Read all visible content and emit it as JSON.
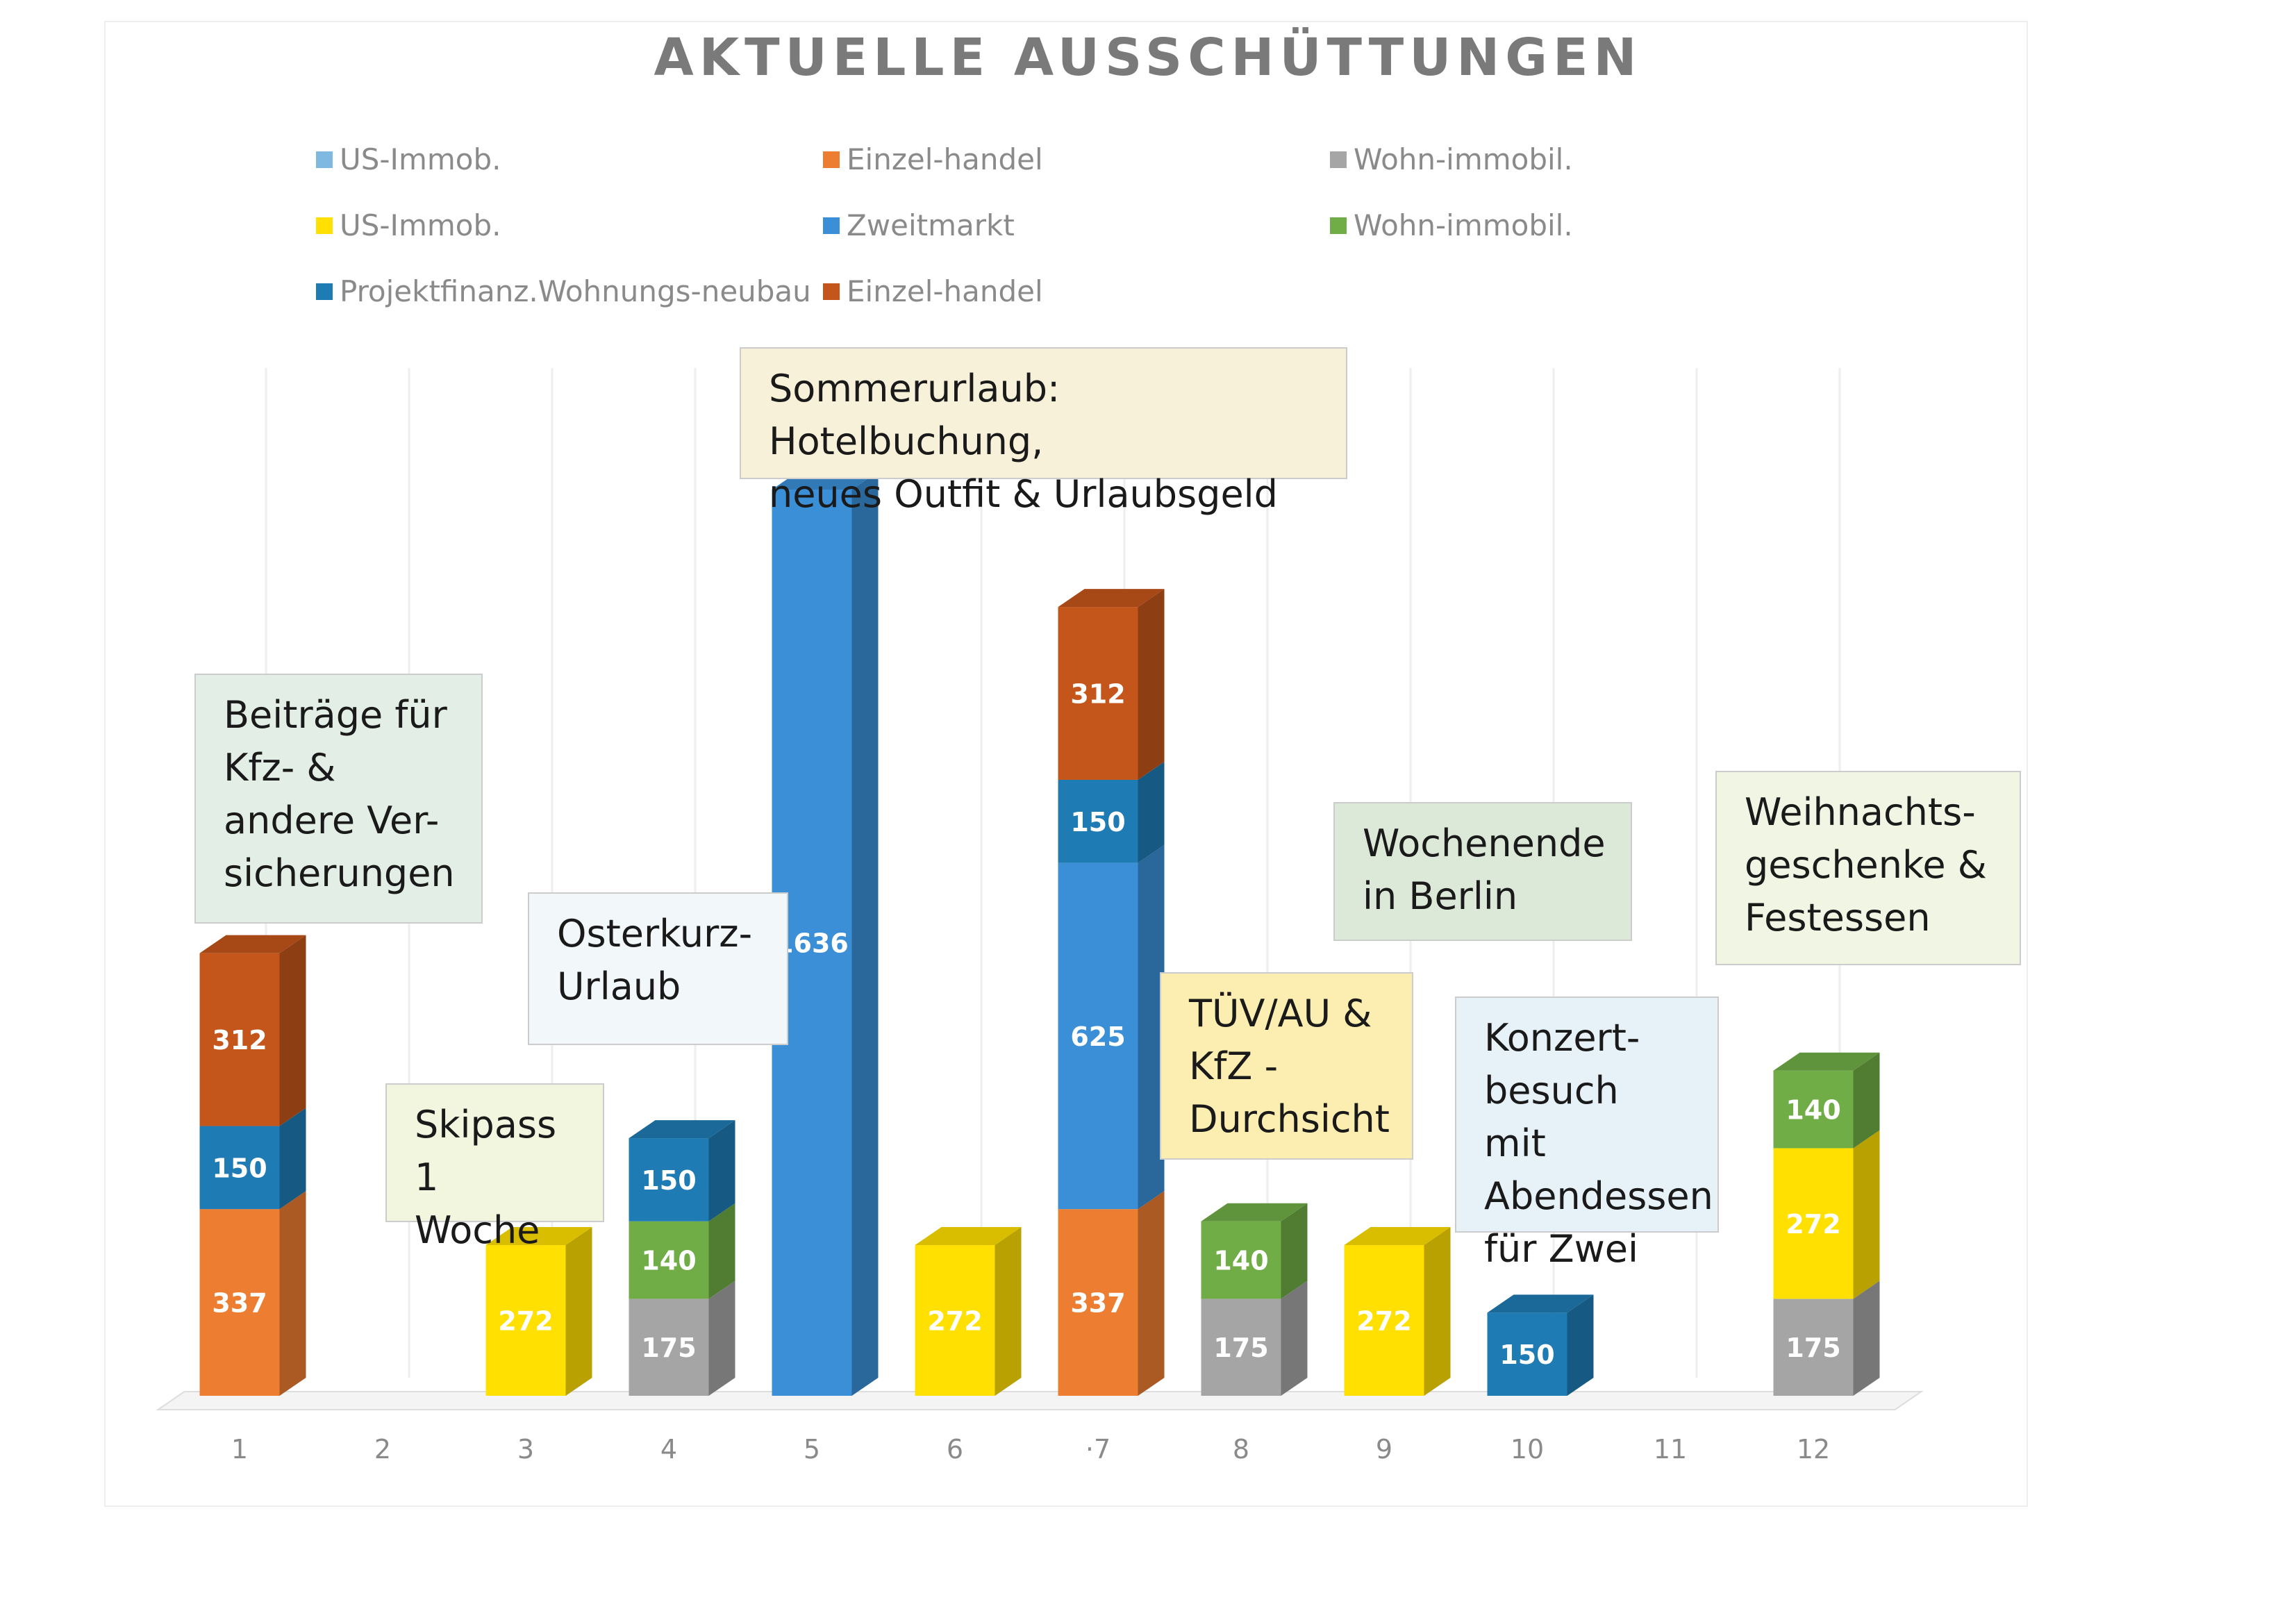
{
  "chart_data": {
    "type": "bar",
    "stacked": true,
    "title": "AKTUELLE AUSSCHÜTTUNGEN",
    "categories": [
      "1",
      "2",
      "3",
      "4",
      "5",
      "6",
      "·7",
      "8",
      "9",
      "10",
      "11",
      "12"
    ],
    "legend": [
      {
        "name": "US-Immob.",
        "color": "#7fb8e0"
      },
      {
        "name": "Einzel-handel",
        "color": "#ed7d31"
      },
      {
        "name": "Wohn-immobil.",
        "color": "#a5a5a5"
      },
      {
        "name": "US-Immob.",
        "color": "#ffe000"
      },
      {
        "name": "Zweitmarkt",
        "color": "#3a8fd6"
      },
      {
        "name": "Wohn-immobil.",
        "color": "#70ad47"
      },
      {
        "name": "Projektfinanz.Wohnungs-neubau",
        "color": "#1f7bb4"
      },
      {
        "name": "Einzel-handel",
        "color": "#c5561b"
      }
    ],
    "bars": [
      {
        "x": "1",
        "segments": [
          {
            "value": 337,
            "color": "#ed7d31"
          },
          {
            "value": 150,
            "color": "#1f7bb4"
          },
          {
            "value": 312,
            "color": "#c5561b"
          }
        ]
      },
      {
        "x": "2",
        "segments": []
      },
      {
        "x": "3",
        "segments": [
          {
            "value": 272,
            "color": "#ffe000"
          }
        ]
      },
      {
        "x": "4",
        "segments": [
          {
            "value": 175,
            "color": "#a5a5a5"
          },
          {
            "value": 140,
            "color": "#70ad47"
          },
          {
            "value": 150,
            "color": "#1f7bb4"
          }
        ]
      },
      {
        "x": "5",
        "segments": [
          {
            "value": 1636,
            "color": "#3a8fd6"
          }
        ]
      },
      {
        "x": "6",
        "segments": [
          {
            "value": 272,
            "color": "#ffe000"
          }
        ]
      },
      {
        "x": "·7",
        "segments": [
          {
            "value": 337,
            "color": "#ed7d31"
          },
          {
            "value": 625,
            "color": "#3a8fd6"
          },
          {
            "value": 150,
            "color": "#1f7bb4"
          },
          {
            "value": 312,
            "color": "#c5561b"
          }
        ]
      },
      {
        "x": "8",
        "segments": [
          {
            "value": 175,
            "color": "#a5a5a5"
          },
          {
            "value": 140,
            "color": "#70ad47"
          }
        ]
      },
      {
        "x": "9",
        "segments": [
          {
            "value": 272,
            "color": "#ffe000"
          }
        ]
      },
      {
        "x": "10",
        "segments": [
          {
            "value": 150,
            "color": "#1f7bb4"
          }
        ]
      },
      {
        "x": "11",
        "segments": []
      },
      {
        "x": "12",
        "segments": [
          {
            "value": 175,
            "color": "#a5a5a5"
          },
          {
            "value": 272,
            "color": "#ffe000"
          },
          {
            "value": 140,
            "color": "#70ad47"
          }
        ]
      }
    ],
    "ylim": [
      0,
      1636
    ],
    "grid": "vertical",
    "legend_position": "top"
  },
  "annotations": [
    {
      "text": "Beiträge für\nKfz- &\nandere Ver-\nsicherungen",
      "bg": "#e3efe6"
    },
    {
      "text": "Skipass\n1 Woche",
      "bg": "#f3f6df"
    },
    {
      "text": "Osterkurz-\nUrlaub",
      "bg": "#f2f7fa"
    },
    {
      "text": "Sommerurlaub: Hotelbuchung,\nneues Outfit & Urlaubsgeld",
      "bg": "#f8f1da"
    },
    {
      "text": "TÜV/AU &\nKfZ -\nDurchsicht",
      "bg": "#fbeeb0"
    },
    {
      "text": "Wochenende\nin Berlin",
      "bg": "#dde9d8"
    },
    {
      "text": "Konzert-\nbesuch mit\nAbendessen\nfür Zwei",
      "bg": "#e6f1f8"
    },
    {
      "text": "Weihnachts-\ngeschenke &\nFestessen",
      "bg": "#f1f6e4"
    }
  ]
}
